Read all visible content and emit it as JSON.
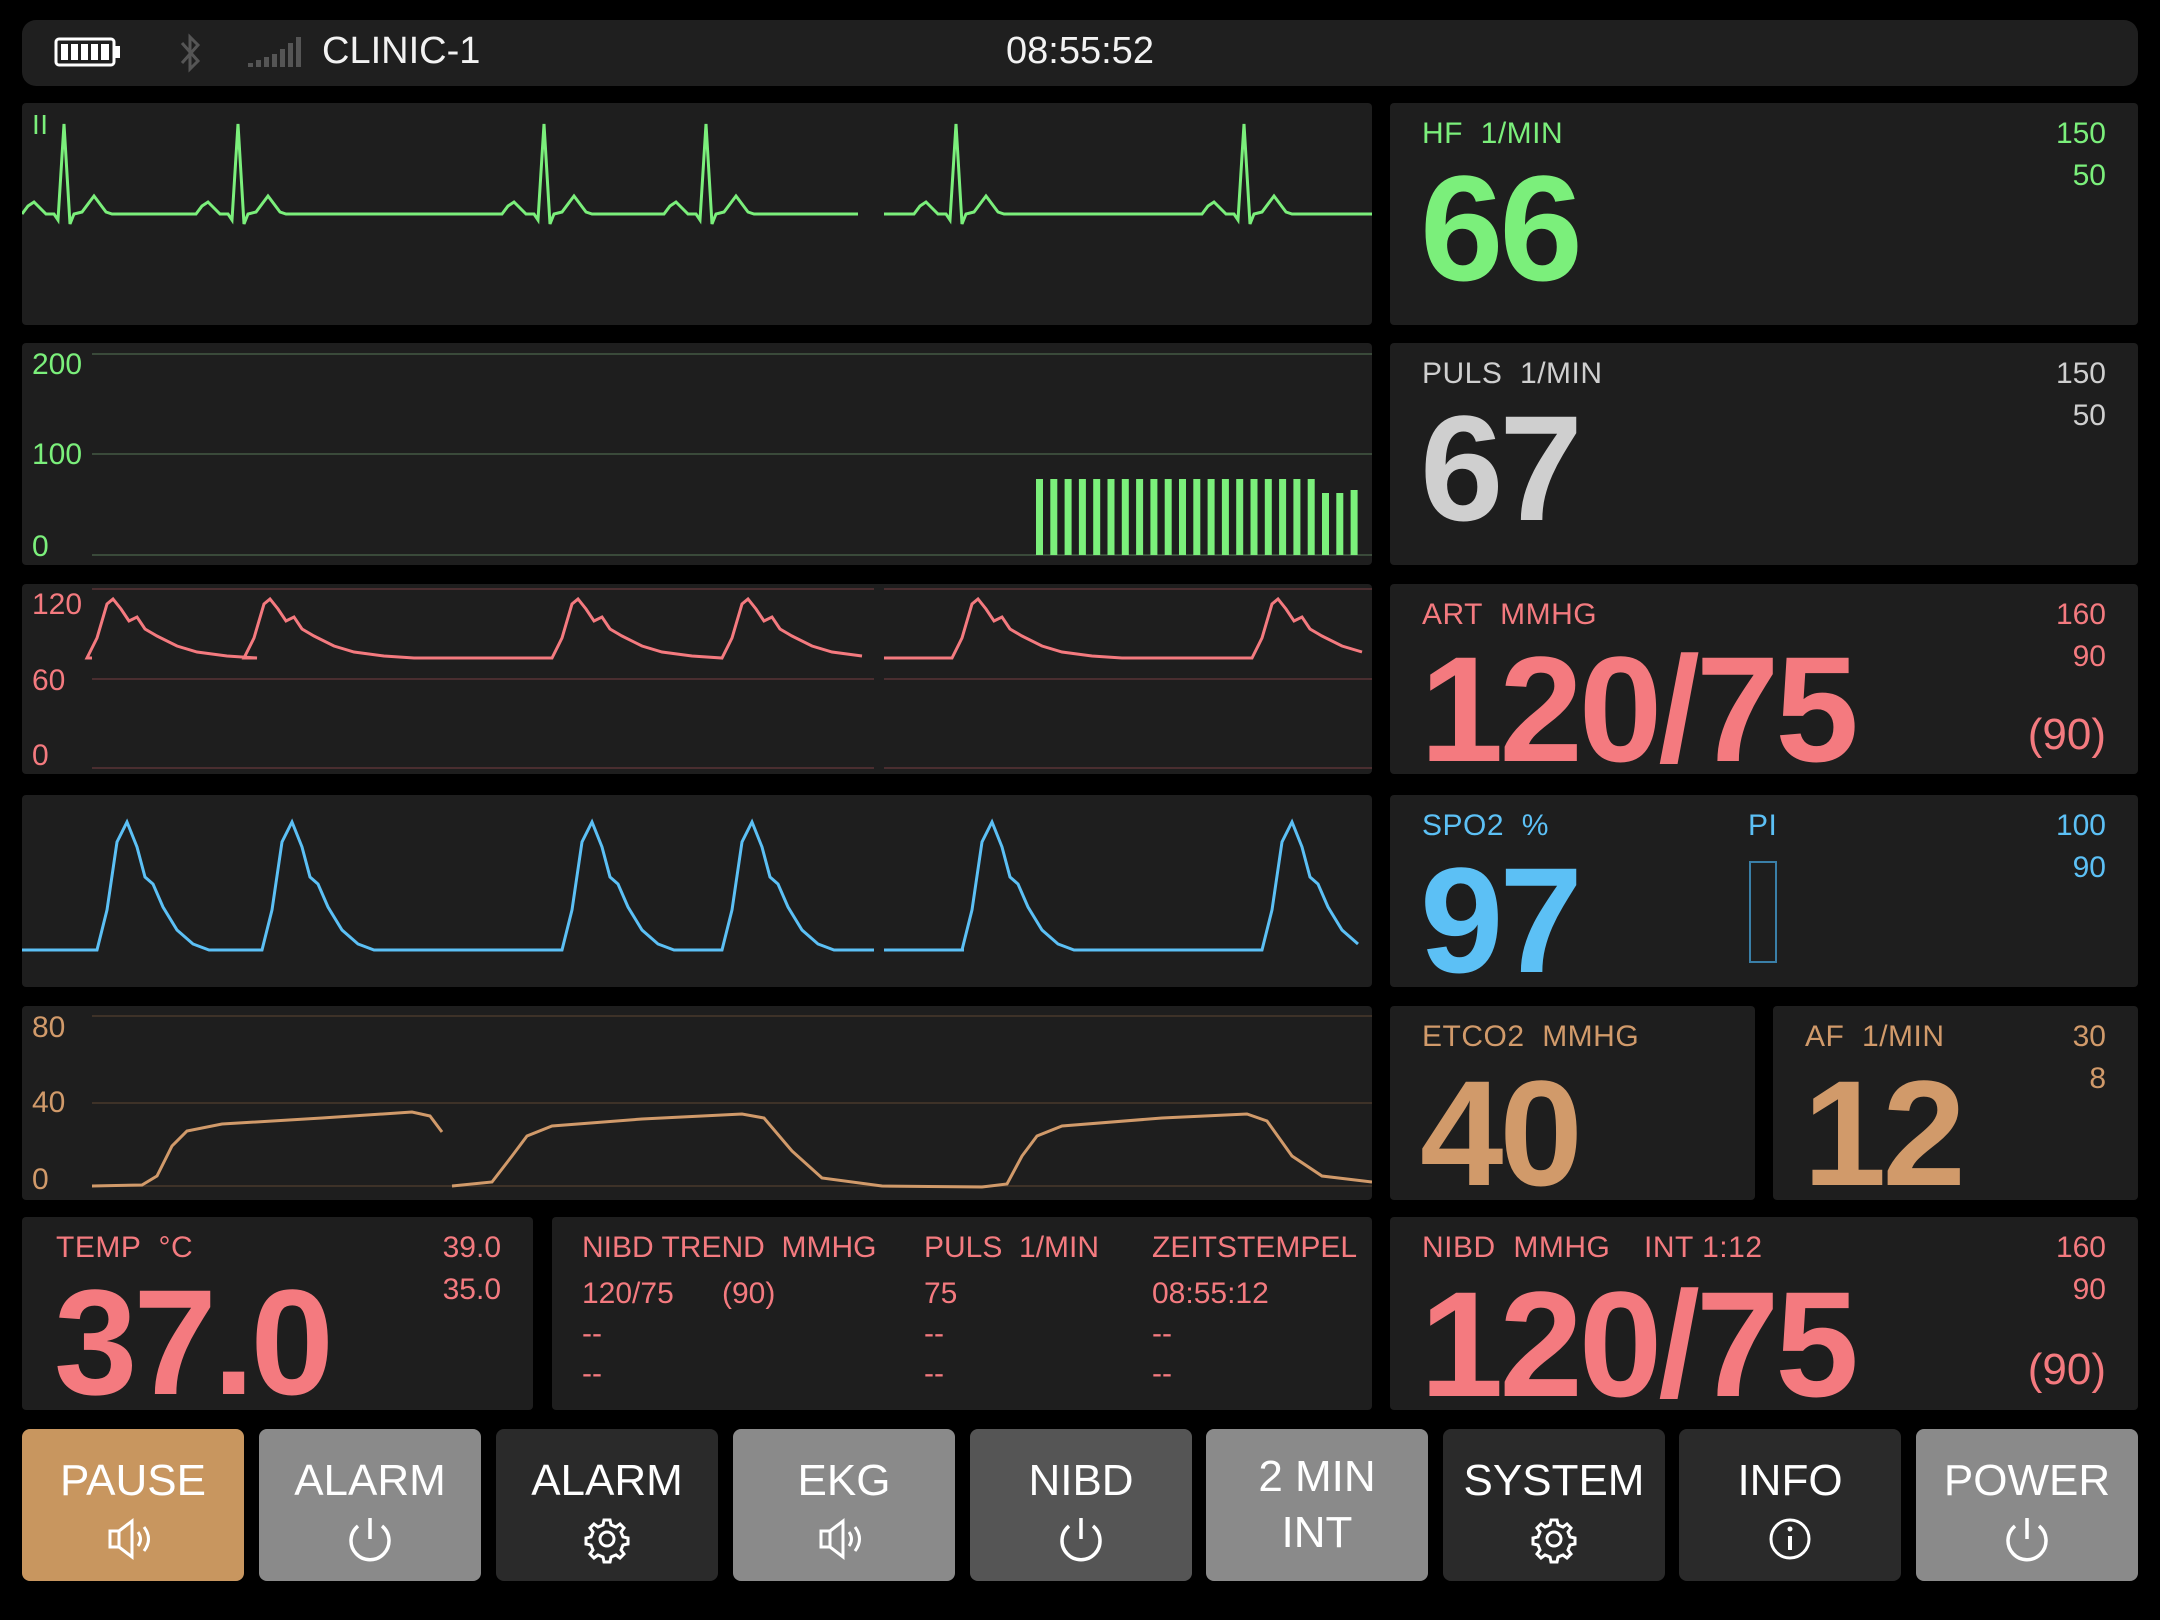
{
  "topbar": {
    "name": "CLINIC-1",
    "time": "08:55:52"
  },
  "icons": [
    "battery-icon",
    "bluetooth-icon",
    "signal-icon",
    "speaker-icon",
    "power-icon",
    "gear-icon",
    "info-icon"
  ],
  "colors": {
    "ecg": "#7bef7b",
    "pulse": "#cfcfcf",
    "art": "#f47a7f",
    "spo2": "#5cc0f5",
    "co2": "#d19a6a",
    "pause": "#c8965f"
  },
  "ecg_wave": {
    "lead": "II"
  },
  "pleth_bars": {
    "scale": [
      "200",
      "100",
      "0"
    ]
  },
  "art_wave": {
    "scale": [
      "120",
      "60",
      "0"
    ]
  },
  "co2_wave": {
    "scale": [
      "80",
      "40",
      "0"
    ]
  },
  "hf": {
    "label": "HF  1/MIN",
    "value": "66",
    "high": "150",
    "low": "50"
  },
  "puls": {
    "label": "PULS  1/MIN",
    "value": "67",
    "high": "150",
    "low": "50"
  },
  "art": {
    "label": "ART  MMHG",
    "value": "120/75",
    "mean": "(90)",
    "high": "160",
    "low": "90"
  },
  "spo2": {
    "label": "SPO2  %",
    "pi_label": "PI",
    "value": "97",
    "high": "100",
    "low": "90"
  },
  "etco2": {
    "label": "ETCO2  MMHG",
    "value": "40"
  },
  "af": {
    "label": "AF  1/MIN",
    "value": "12",
    "high": "30",
    "low": "8"
  },
  "temp": {
    "label": "TEMP  °C",
    "value": "37.0",
    "high": "39.0",
    "low": "35.0"
  },
  "nibd_trend": {
    "headers": [
      "NIBD TREND  MMHG",
      "PULS  1/MIN",
      "ZEITSTEMPEL"
    ],
    "rows": [
      {
        "bp": "120/75",
        "mean": "(90)",
        "puls": "75",
        "time": "08:55:12"
      },
      {
        "bp": "--",
        "mean": "",
        "puls": "--",
        "time": "--"
      },
      {
        "bp": "--",
        "mean": "",
        "puls": "--",
        "time": "--"
      }
    ]
  },
  "nibd": {
    "label": "NIBD  MMHG",
    "interval": "INT 1:12",
    "value": "120/75",
    "mean": "(90)",
    "high": "160",
    "low": "90"
  },
  "buttons": [
    {
      "label": "PAUSE",
      "icon": "speaker-icon"
    },
    {
      "label": "ALARM",
      "icon": "power-icon"
    },
    {
      "label": "ALARM",
      "icon": "gear-icon"
    },
    {
      "label": "EKG",
      "icon": "speaker-icon"
    },
    {
      "label": "NIBD",
      "icon": "power-icon"
    },
    {
      "label": "2 MIN\nINT",
      "icon": ""
    },
    {
      "label": "SYSTEM",
      "icon": "gear-icon"
    },
    {
      "label": "INFO",
      "icon": "info-icon"
    },
    {
      "label": "POWER",
      "icon": "power-icon"
    }
  ]
}
